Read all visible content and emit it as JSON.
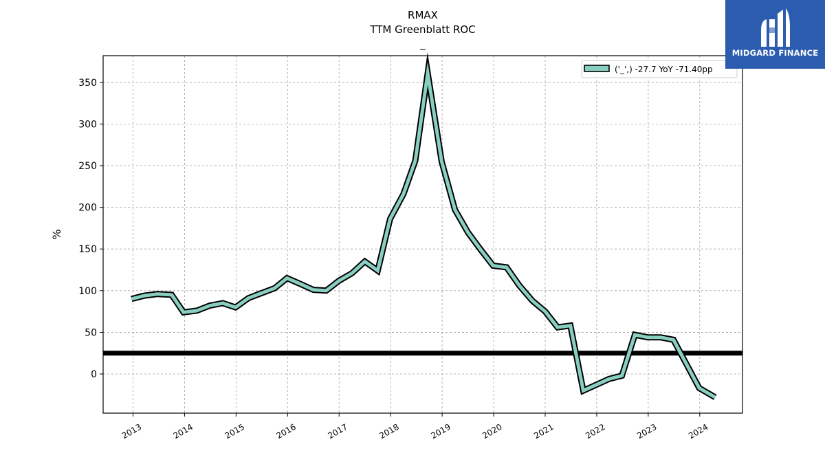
{
  "chart_data": {
    "type": "line",
    "title": "RMAX",
    "subtitle": "TTM Greenblatt ROC",
    "subtitle2": "_",
    "ylabel": "%",
    "xlabel": "",
    "ylim": [
      -47,
      382
    ],
    "xlim": [
      2012.42,
      2024.83
    ],
    "yticks": [
      0,
      50,
      100,
      150,
      200,
      250,
      300,
      350
    ],
    "xticks": [
      2013,
      2014,
      2015,
      2016,
      2017,
      2018,
      2019,
      2020,
      2021,
      2022,
      2023,
      2024
    ],
    "xtick_labels": [
      "2013",
      "2014",
      "2015",
      "2016",
      "2017",
      "2018",
      "2019",
      "2020",
      "2021",
      "2022",
      "2023",
      "2024"
    ],
    "grid": true,
    "legend_position": "top-right",
    "reference_line": {
      "y": 25
    },
    "series": [
      {
        "name": "('_',) -27.7 YoY -71.40pp",
        "color": "#88cfc2",
        "points": [
          {
            "x": 2012.97,
            "y": 90
          },
          {
            "x": 2013.22,
            "y": 94
          },
          {
            "x": 2013.48,
            "y": 96
          },
          {
            "x": 2013.75,
            "y": 95
          },
          {
            "x": 2013.98,
            "y": 74
          },
          {
            "x": 2014.24,
            "y": 76
          },
          {
            "x": 2014.49,
            "y": 82
          },
          {
            "x": 2014.74,
            "y": 85
          },
          {
            "x": 2014.99,
            "y": 80
          },
          {
            "x": 2015.24,
            "y": 91
          },
          {
            "x": 2015.49,
            "y": 97
          },
          {
            "x": 2015.75,
            "y": 103
          },
          {
            "x": 2015.99,
            "y": 115
          },
          {
            "x": 2016.25,
            "y": 108
          },
          {
            "x": 2016.5,
            "y": 101
          },
          {
            "x": 2016.75,
            "y": 100
          },
          {
            "x": 2017.0,
            "y": 112
          },
          {
            "x": 2017.25,
            "y": 121
          },
          {
            "x": 2017.5,
            "y": 135
          },
          {
            "x": 2017.75,
            "y": 124
          },
          {
            "x": 2017.99,
            "y": 186
          },
          {
            "x": 2018.25,
            "y": 216
          },
          {
            "x": 2018.48,
            "y": 256
          },
          {
            "x": 2018.72,
            "y": 361
          },
          {
            "x": 2018.99,
            "y": 255
          },
          {
            "x": 2019.25,
            "y": 197
          },
          {
            "x": 2019.5,
            "y": 170
          },
          {
            "x": 2019.75,
            "y": 149
          },
          {
            "x": 2019.99,
            "y": 130
          },
          {
            "x": 2020.25,
            "y": 128
          },
          {
            "x": 2020.5,
            "y": 106
          },
          {
            "x": 2020.75,
            "y": 88
          },
          {
            "x": 2021.0,
            "y": 75
          },
          {
            "x": 2021.24,
            "y": 56
          },
          {
            "x": 2021.49,
            "y": 58
          },
          {
            "x": 2021.74,
            "y": -20
          },
          {
            "x": 2021.99,
            "y": -13
          },
          {
            "x": 2022.24,
            "y": -6
          },
          {
            "x": 2022.49,
            "y": -2
          },
          {
            "x": 2022.74,
            "y": 47
          },
          {
            "x": 2022.99,
            "y": 44
          },
          {
            "x": 2023.24,
            "y": 44
          },
          {
            "x": 2023.49,
            "y": 41
          },
          {
            "x": 2023.99,
            "y": -17
          },
          {
            "x": 2024.3,
            "y": -28
          }
        ]
      }
    ]
  },
  "logo": {
    "text": "MIDGARD FINANCE",
    "background": "#2b5cb0"
  }
}
